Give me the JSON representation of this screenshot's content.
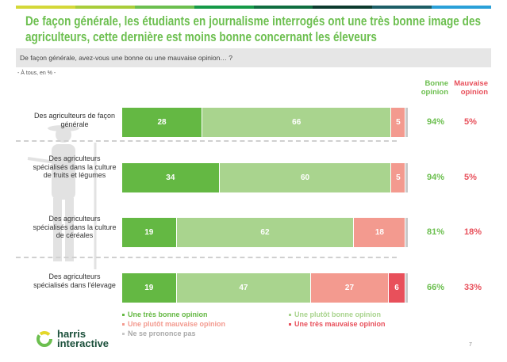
{
  "title": "De façon générale, les étudiants en journalisme interrogés ont une très bonne image des agriculteurs, cette dernière est moins bonne concernant les éleveurs",
  "question": "De façon générale, avez-vous une bonne ou une mauvaise opinion… ?",
  "base": "- À tous, en % -",
  "stripe_colors": [
    "#d4d838",
    "#a9cd3a",
    "#6cbf4f",
    "#159a48",
    "#0f6e40",
    "#0c3b2e",
    "#1d5e66",
    "#2aa0d8"
  ],
  "columns": {
    "good": "Bonne opinion",
    "bad": "Mauvaise opinion"
  },
  "colors": {
    "very_good": "#64b843",
    "rather_good": "#a9d48e",
    "rather_bad": "#f39a8f",
    "very_bad": "#e8505b",
    "no_answer": "#c8c8c8",
    "good_text": "#6cbf4f",
    "bad_text": "#e8505b"
  },
  "chart_data": {
    "type": "bar",
    "orientation": "horizontal-stacked",
    "categories": [
      "Des agriculteurs de façon générale",
      "Des agriculteurs spécialisés dans la culture de fruits et légumes",
      "Des agriculteurs spécialisés dans la culture de céréales",
      "Des agriculteurs spécialisés dans l'élevage"
    ],
    "series": [
      {
        "name": "Une très bonne opinion",
        "key": "very_good",
        "values": [
          28,
          34,
          19,
          19
        ]
      },
      {
        "name": "Une plutôt bonne opinion",
        "key": "rather_good",
        "values": [
          66,
          60,
          62,
          47
        ]
      },
      {
        "name": "Une plutôt mauvaise opinion",
        "key": "rather_bad",
        "values": [
          5,
          5,
          18,
          27
        ]
      },
      {
        "name": "Une très mauvaise opinion",
        "key": "very_bad",
        "values": [
          0,
          0,
          0,
          6
        ]
      },
      {
        "name": "Ne se prononce pas",
        "key": "no_answer",
        "values": [
          1,
          1,
          1,
          1
        ]
      }
    ],
    "good_totals": [
      "94%",
      "94%",
      "81%",
      "66%"
    ],
    "bad_totals": [
      "5%",
      "5%",
      "18%",
      "33%"
    ],
    "legend_position": "bottom"
  },
  "logo": {
    "line1": "harris",
    "line2": "interactive"
  },
  "page_number": "7"
}
